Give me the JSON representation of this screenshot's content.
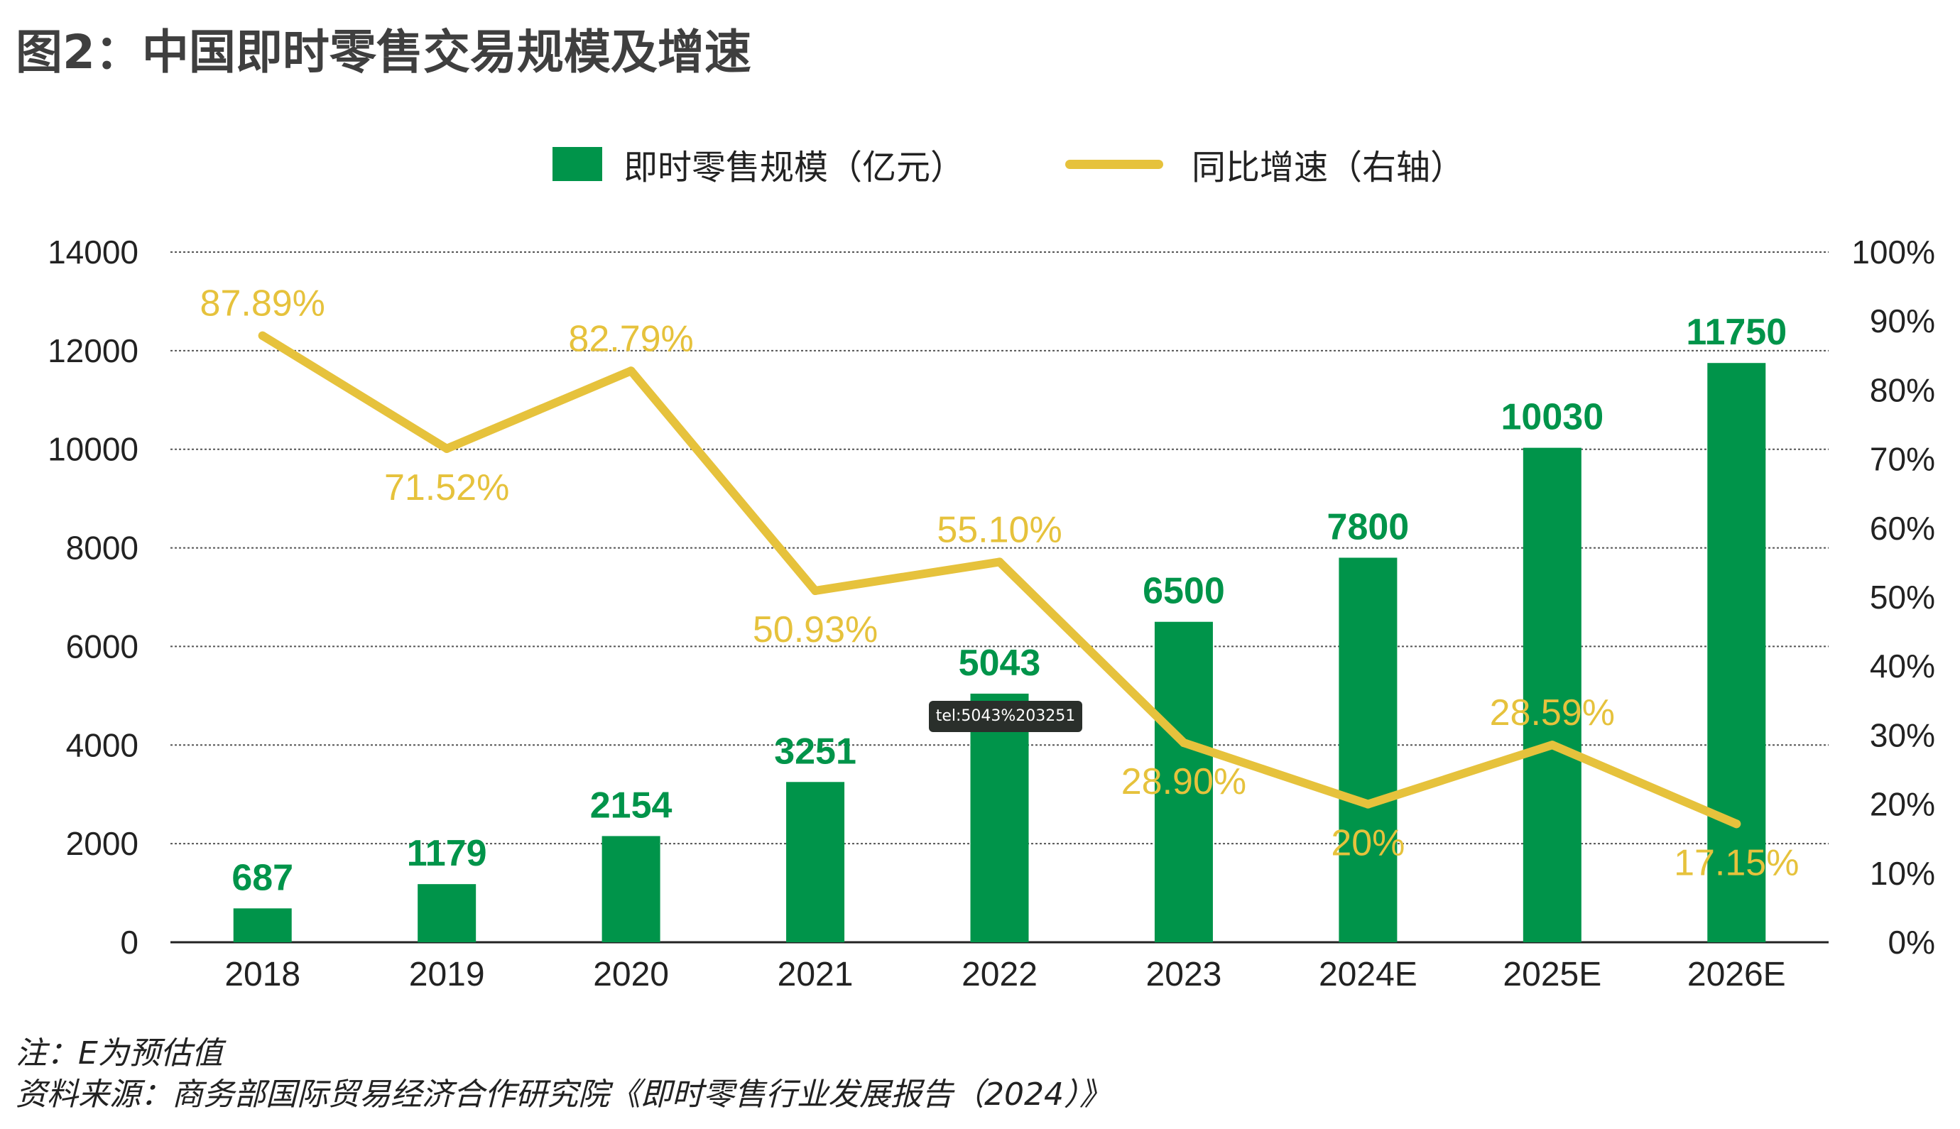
{
  "title": "图2：中国即时零售交易规模及增速",
  "legend": {
    "bar_label": "即时零售规模（亿元）",
    "line_label": "同比增速（右轴）"
  },
  "tooltip_text": "tel:5043%203251",
  "notes": {
    "note": "注：E为预估值",
    "source": "资料来源：商务部国际贸易经济合作研究院《即时零售行业发展报告（2024）》"
  },
  "colors": {
    "bar": "#00944a",
    "line": "#e6c23c",
    "grid": "#555555"
  },
  "chart_data": {
    "type": "bar",
    "categories": [
      "2018",
      "2019",
      "2020",
      "2021",
      "2022",
      "2023",
      "2024E",
      "2025E",
      "2026E"
    ],
    "series": [
      {
        "name": "即时零售规模（亿元）",
        "type": "bar",
        "axis": "left",
        "values": [
          687,
          1179,
          2154,
          3251,
          5043,
          6500,
          7800,
          10030,
          11750
        ],
        "labels": [
          "687",
          "1179",
          "2154",
          "3251",
          "5043",
          "6500",
          "7800",
          "10030",
          "11750"
        ]
      },
      {
        "name": "同比增速（右轴）",
        "type": "line",
        "axis": "right",
        "values": [
          87.89,
          71.52,
          82.79,
          50.93,
          55.1,
          28.9,
          20,
          28.59,
          17.15
        ],
        "labels": [
          "87.89%",
          "71.52%",
          "82.79%",
          "50.93%",
          "55.10%",
          "28.90%",
          "20%",
          "28.59%",
          "17.15%"
        ]
      }
    ],
    "y_left": {
      "ylim": [
        0,
        14000
      ],
      "ticks": [
        "0",
        "2000",
        "4000",
        "6000",
        "8000",
        "10000",
        "12000",
        "14000"
      ]
    },
    "y_right": {
      "ylim": [
        0,
        100
      ],
      "ticks": [
        "0%",
        "10%",
        "20%",
        "30%",
        "40%",
        "50%",
        "60%",
        "70%",
        "80%",
        "90%",
        "100%"
      ]
    },
    "grid": true,
    "legend_position": "top"
  }
}
